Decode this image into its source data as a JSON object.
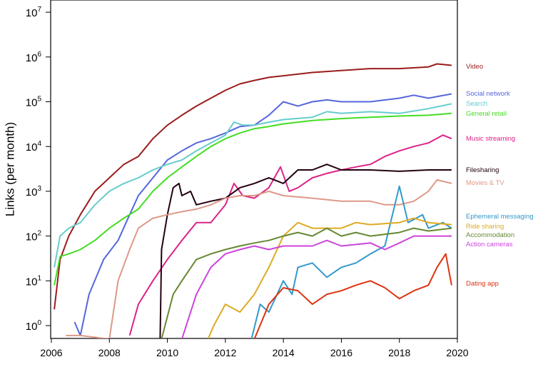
{
  "chart_data": {
    "type": "line",
    "title": "",
    "xlabel": "",
    "ylabel": "Links (per month)",
    "xlim": [
      2006,
      2020
    ],
    "ylim": [
      0.51,
      18600000
    ],
    "yscale": "log",
    "grid": false,
    "legend": "right, labels at line ends",
    "x_ticks": [
      "2006",
      "2008",
      "2010",
      "2012",
      "2014",
      "2016",
      "2018",
      "2020"
    ],
    "y_ticks": [
      {
        "base": "10",
        "exp": "0"
      },
      {
        "base": "10",
        "exp": "1"
      },
      {
        "base": "10",
        "exp": "2"
      },
      {
        "base": "10",
        "exp": "3"
      },
      {
        "base": "10",
        "exp": "4"
      },
      {
        "base": "10",
        "exp": "5"
      },
      {
        "base": "10",
        "exp": "6"
      },
      {
        "base": "10",
        "exp": "7"
      }
    ],
    "series": [
      {
        "name": "Video",
        "color": "#9b1c1c",
        "x": [
          2006.1,
          2006.3,
          2006.6,
          2007,
          2007.5,
          2008,
          2008.5,
          2009,
          2009.5,
          2010,
          2010.5,
          2011,
          2011.5,
          2012,
          2012.5,
          2013,
          2013.5,
          2014,
          2015,
          2016,
          2017,
          2018,
          2019,
          2019.3,
          2019.8
        ],
        "y": [
          2.3,
          30,
          100,
          300,
          1000,
          2000,
          4000,
          6000,
          15000,
          30000,
          50000,
          80000,
          120000,
          180000,
          250000,
          300000,
          350000,
          380000,
          450000,
          500000,
          550000,
          550000,
          600000,
          700000,
          650000
        ]
      },
      {
        "name": "Social network",
        "color": "#5566dd",
        "x": [
          2006.8,
          2007,
          2007.3,
          2007.8,
          2008.3,
          2008.7,
          2009,
          2009.5,
          2010,
          2010.5,
          2011,
          2011.5,
          2012,
          2012.5,
          2013,
          2013.5,
          2014,
          2014.5,
          2015,
          2015.5,
          2016,
          2017,
          2018,
          2018.5,
          2019,
          2019.8
        ],
        "y": [
          1.2,
          0.6,
          5,
          30,
          80,
          300,
          800,
          2000,
          5000,
          8000,
          12000,
          15000,
          20000,
          28000,
          30000,
          50000,
          100000,
          80000,
          100000,
          110000,
          100000,
          100000,
          120000,
          140000,
          120000,
          150000
        ]
      },
      {
        "name": "Search",
        "color": "#66cccc",
        "x": [
          2006.1,
          2006.3,
          2006.6,
          2007,
          2007.5,
          2008,
          2008.5,
          2009,
          2009.5,
          2010,
          2010.5,
          2011,
          2011.5,
          2012,
          2012.3,
          2012.6,
          2013,
          2013.5,
          2014,
          2015,
          2015.5,
          2016,
          2017,
          2018,
          2019,
          2019.8
        ],
        "y": [
          20,
          100,
          150,
          200,
          500,
          1000,
          1500,
          2000,
          3000,
          4000,
          5000,
          8000,
          12000,
          18000,
          35000,
          30000,
          30000,
          35000,
          40000,
          45000,
          60000,
          55000,
          60000,
          55000,
          70000,
          90000
        ]
      },
      {
        "name": "General retail",
        "color": "#44dd22",
        "x": [
          2006.1,
          2006.3,
          2006.6,
          2007,
          2007.5,
          2008,
          2008.5,
          2009,
          2009.5,
          2010,
          2010.5,
          2011,
          2011.5,
          2012,
          2012.5,
          2013,
          2013.5,
          2014,
          2015,
          2016,
          2017,
          2018,
          2019,
          2019.8
        ],
        "y": [
          8,
          35,
          40,
          50,
          80,
          150,
          250,
          400,
          1000,
          2000,
          3500,
          6000,
          10000,
          15000,
          20000,
          25000,
          28000,
          32000,
          38000,
          42000,
          45000,
          48000,
          50000,
          55000
        ]
      },
      {
        "name": "Music streaming",
        "color": "#dd2288",
        "x": [
          2008.7,
          2009,
          2009.5,
          2010,
          2010.5,
          2011,
          2011.5,
          2012,
          2012.3,
          2012.6,
          2013,
          2013.5,
          2013.9,
          2014.2,
          2014.5,
          2015,
          2015.5,
          2016,
          2016.5,
          2017,
          2017.5,
          2018,
          2018.5,
          2019,
          2019.5,
          2019.8
        ],
        "y": [
          0.6,
          3,
          10,
          30,
          80,
          200,
          200,
          500,
          1500,
          800,
          700,
          1200,
          3500,
          1000,
          1200,
          2000,
          2500,
          3000,
          3500,
          4000,
          6000,
          8000,
          10000,
          12000,
          18000,
          15000
        ]
      },
      {
        "name": "Filesharing",
        "color": "#220011",
        "x": [
          2009.75,
          2009.8,
          2010,
          2010.2,
          2010.4,
          2010.5,
          2010.8,
          2011,
          2011.5,
          2012,
          2012.5,
          2013,
          2013.5,
          2014,
          2014.5,
          2015,
          2015.5,
          2016,
          2017,
          2018,
          2019,
          2019.8
        ],
        "y": [
          0.5,
          50,
          300,
          1200,
          1500,
          800,
          1000,
          500,
          600,
          700,
          1200,
          1500,
          2000,
          1500,
          3000,
          3000,
          4000,
          3000,
          3000,
          2800,
          3000,
          3000
        ]
      },
      {
        "name": "Movies & TV",
        "color": "#dd9988",
        "x": [
          2006.5,
          2007,
          2008,
          2008.3,
          2008.7,
          2009,
          2009.5,
          2010,
          2010.5,
          2011,
          2011.5,
          2012,
          2012.5,
          2013,
          2013.5,
          2014,
          2015,
          2016,
          2017,
          2017.5,
          2018,
          2018.5,
          2019,
          2019.3,
          2019.8
        ],
        "y": [
          0.6,
          0.6,
          0.5,
          10,
          50,
          150,
          250,
          300,
          350,
          400,
          500,
          700,
          800,
          800,
          1000,
          800,
          700,
          600,
          600,
          500,
          500,
          600,
          1000,
          1800,
          1500
        ]
      },
      {
        "name": "Ephemeral messaging",
        "color": "#3399cc",
        "x": [
          2012.9,
          2013.2,
          2013.5,
          2014,
          2014.3,
          2014.5,
          2015,
          2015.5,
          2016,
          2016.5,
          2017,
          2017.5,
          2018,
          2018.3,
          2018.8,
          2019,
          2019.5,
          2019.8
        ],
        "y": [
          0.5,
          3,
          2,
          10,
          5,
          20,
          25,
          12,
          20,
          25,
          40,
          60,
          1300,
          200,
          300,
          150,
          200,
          150
        ]
      },
      {
        "name": "Ride sharing",
        "color": "#ddaa22",
        "x": [
          2011.4,
          2011.6,
          2012,
          2012.5,
          2013,
          2013.5,
          2014,
          2014.5,
          2015,
          2016,
          2016.5,
          2017,
          2018,
          2018.5,
          2019,
          2019.8
        ],
        "y": [
          0.5,
          1,
          3,
          2,
          5,
          20,
          100,
          200,
          150,
          150,
          200,
          180,
          200,
          250,
          200,
          180
        ]
      },
      {
        "name": "Accommodation",
        "color": "#668833",
        "x": [
          2009.8,
          2010.2,
          2010.5,
          2011,
          2011.5,
          2012,
          2012.5,
          2013,
          2013.5,
          2014,
          2014.5,
          2015,
          2015.5,
          2016,
          2016.5,
          2017,
          2018,
          2018.5,
          2019,
          2019.8
        ],
        "y": [
          0.5,
          5,
          10,
          30,
          40,
          50,
          60,
          70,
          80,
          100,
          120,
          100,
          150,
          100,
          120,
          100,
          120,
          150,
          130,
          150
        ]
      },
      {
        "name": "Action cameras",
        "color": "#cc44dd",
        "x": [
          2010.5,
          2011,
          2011.5,
          2012,
          2012.5,
          2013,
          2013.5,
          2014,
          2015,
          2015.5,
          2016,
          2017,
          2017.5,
          2018,
          2018.5,
          2019,
          2019.8
        ],
        "y": [
          0.5,
          5,
          20,
          40,
          50,
          60,
          50,
          60,
          60,
          80,
          60,
          70,
          50,
          70,
          100,
          100,
          100
        ]
      },
      {
        "name": "Dating app",
        "color": "#dd3311",
        "x": [
          2013,
          2013.5,
          2014,
          2014.5,
          2015,
          2015.5,
          2016,
          2016.5,
          2017,
          2017.5,
          2018,
          2018.5,
          2019,
          2019.3,
          2019.6,
          2019.8
        ],
        "y": [
          0.5,
          3,
          7,
          6,
          3,
          5,
          6,
          8,
          10,
          7,
          4,
          6,
          8,
          20,
          40,
          8
        ]
      }
    ]
  }
}
